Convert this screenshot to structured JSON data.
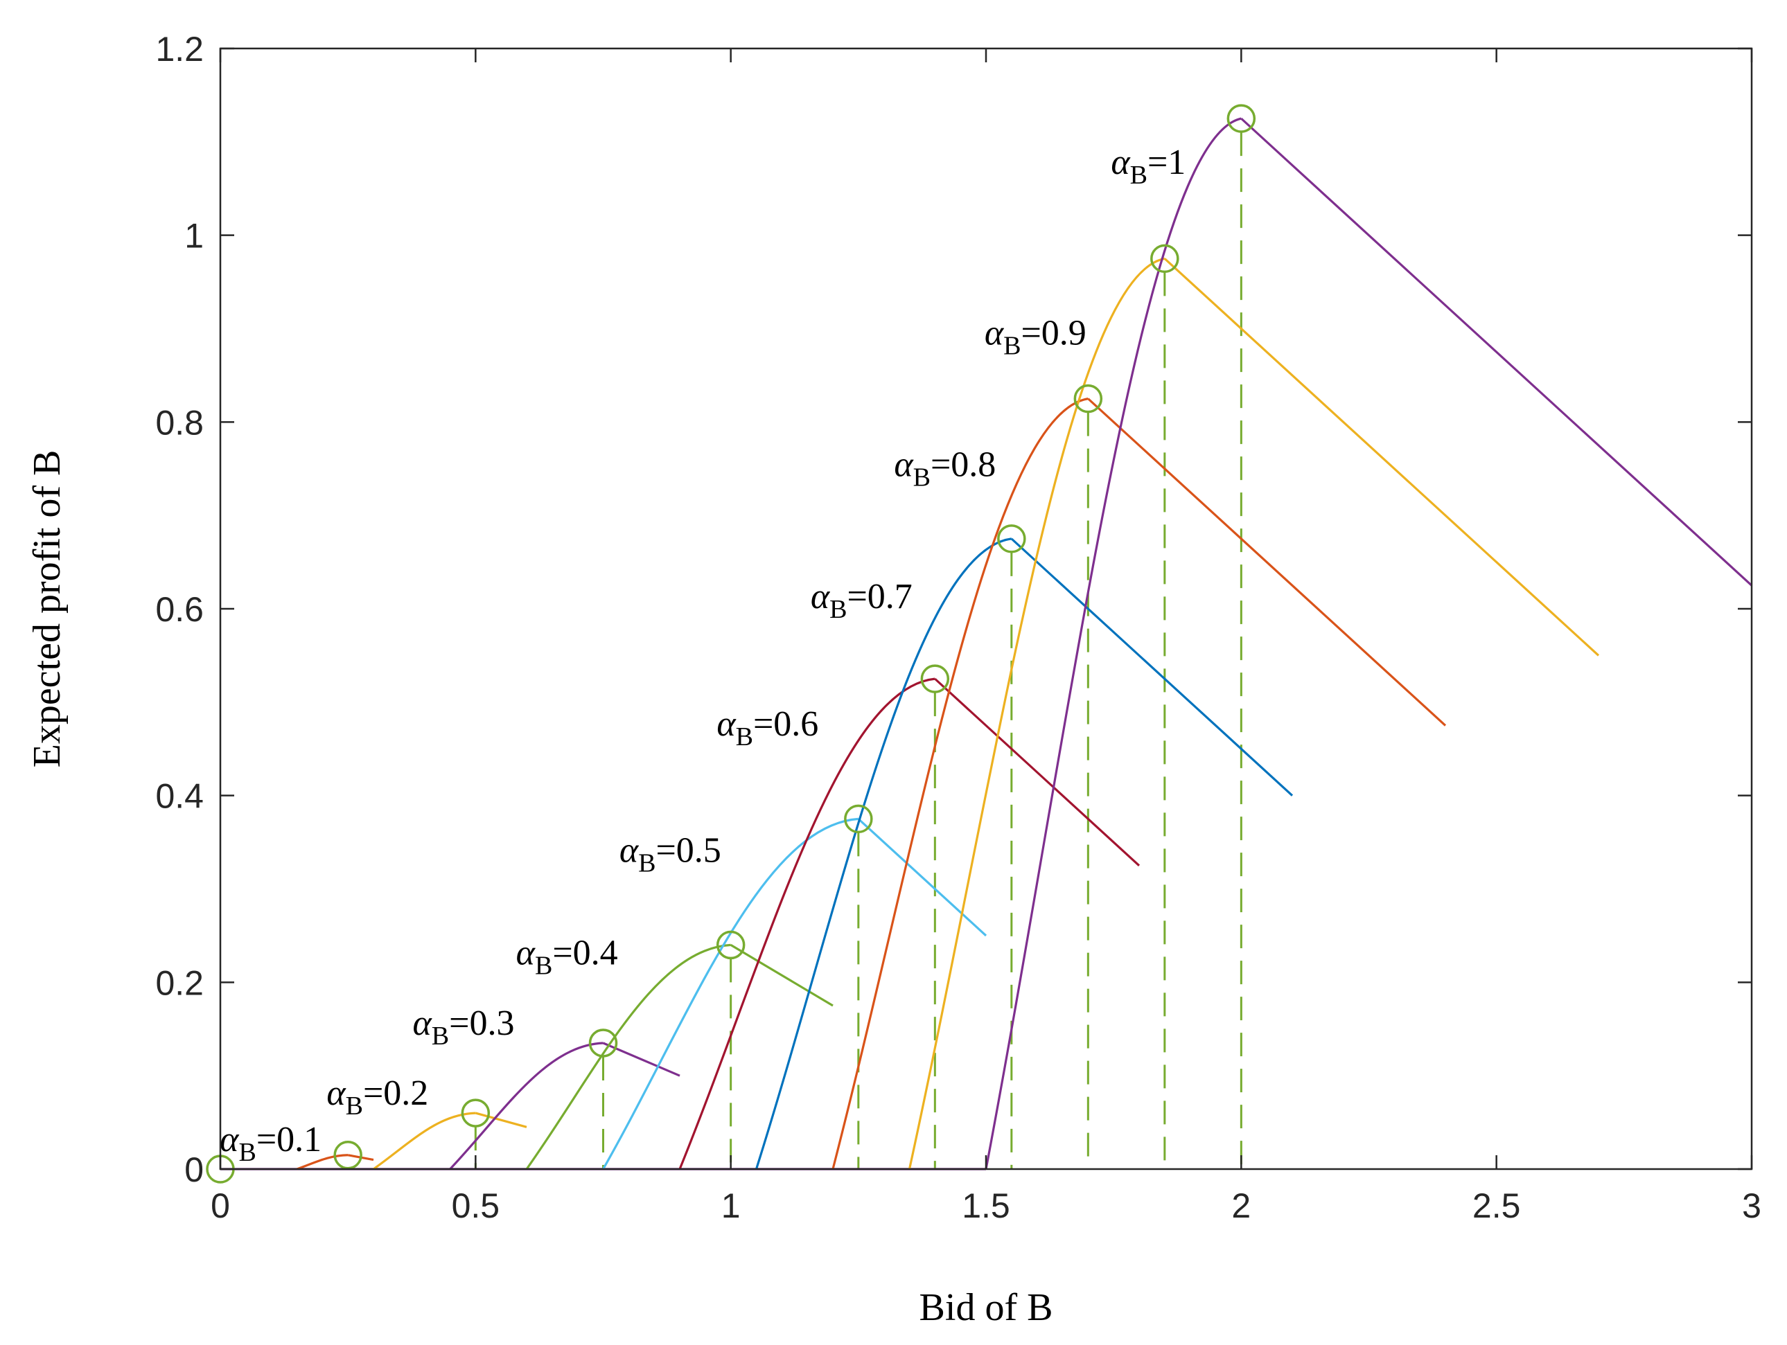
{
  "chart_data": {
    "type": "line",
    "title": "",
    "xlabel": "Bid of B",
    "ylabel": "Expected profit of B",
    "xlim": [
      0,
      3
    ],
    "ylim": [
      0,
      1.2
    ],
    "xticks": [
      0,
      0.5,
      1,
      1.5,
      2,
      2.5,
      3
    ],
    "xtick_labels": [
      "0",
      "0.5",
      "1",
      "1.5",
      "2",
      "2.5",
      "3"
    ],
    "yticks": [
      0,
      0.2,
      0.4,
      0.6,
      0.8,
      1,
      1.2
    ],
    "ytick_labels": [
      "0",
      "0.2",
      "0.4",
      "0.6",
      "0.8",
      "1",
      "1.2"
    ],
    "grid": false,
    "legend": "none",
    "marker_color": "#77AC30",
    "series": [
      {
        "name": "αB=0.1",
        "alpha": 0.1,
        "color": "#D95319",
        "label_symbol": "α",
        "label_sub": "B",
        "label_value": "=0.1",
        "rise": [
          [
            0.15,
            0
          ],
          [
            0.25,
            0.015
          ]
        ],
        "fall": [
          [
            0.25,
            0.015
          ],
          [
            0.3,
            0.01
          ]
        ],
        "optimum": [
          0.25,
          0.015
        ]
      },
      {
        "name": "αB=0.2",
        "alpha": 0.2,
        "color": "#EDB120",
        "label_symbol": "α",
        "label_sub": "B",
        "label_value": "=0.2",
        "rise": [
          [
            0.3,
            0
          ],
          [
            0.5,
            0.06
          ]
        ],
        "fall": [
          [
            0.5,
            0.06
          ],
          [
            0.6,
            0.045
          ]
        ],
        "optimum": [
          0.5,
          0.06
        ]
      },
      {
        "name": "αB=0.3",
        "alpha": 0.3,
        "color": "#7E2F8E",
        "label_symbol": "α",
        "label_sub": "B",
        "label_value": "=0.3",
        "rise": [
          [
            0.45,
            0
          ],
          [
            0.75,
            0.135
          ]
        ],
        "fall": [
          [
            0.75,
            0.135
          ],
          [
            0.9,
            0.1
          ]
        ],
        "optimum": [
          0.75,
          0.135
        ]
      },
      {
        "name": "αB=0.4",
        "alpha": 0.4,
        "color": "#77AC30",
        "label_symbol": "α",
        "label_sub": "B",
        "label_value": "=0.4",
        "rise": [
          [
            0.6,
            0
          ],
          [
            1.0,
            0.24
          ]
        ],
        "fall": [
          [
            1.0,
            0.24
          ],
          [
            1.2,
            0.175
          ]
        ],
        "optimum": [
          1.0,
          0.24
        ]
      },
      {
        "name": "αB=0.5",
        "alpha": 0.5,
        "color": "#4DBEEE",
        "label_symbol": "α",
        "label_sub": "B",
        "label_value": "=0.5",
        "rise": [
          [
            0.75,
            0
          ],
          [
            1.25,
            0.375
          ]
        ],
        "fall": [
          [
            1.25,
            0.375
          ],
          [
            1.5,
            0.25
          ]
        ],
        "optimum": [
          1.25,
          0.375
        ]
      },
      {
        "name": "αB=0.6",
        "alpha": 0.6,
        "color": "#A2142F",
        "label_symbol": "α",
        "label_sub": "B",
        "label_value": "=0.6",
        "rise": [
          [
            0.9,
            0
          ],
          [
            1.4,
            0.525
          ]
        ],
        "fall": [
          [
            1.4,
            0.525
          ],
          [
            1.8,
            0.325
          ]
        ],
        "optimum": [
          1.4,
          0.525
        ]
      },
      {
        "name": "αB=0.7",
        "alpha": 0.7,
        "color": "#0072BD",
        "label_symbol": "α",
        "label_sub": "B",
        "label_value": "=0.7",
        "rise": [
          [
            1.05,
            0
          ],
          [
            1.55,
            0.675
          ]
        ],
        "fall": [
          [
            1.55,
            0.675
          ],
          [
            2.1,
            0.4
          ]
        ],
        "optimum": [
          1.55,
          0.675
        ]
      },
      {
        "name": "αB=0.8",
        "alpha": 0.8,
        "color": "#D95319",
        "label_symbol": "α",
        "label_sub": "B",
        "label_value": "=0.8",
        "rise": [
          [
            1.2,
            0
          ],
          [
            1.7,
            0.825
          ]
        ],
        "fall": [
          [
            1.7,
            0.825
          ],
          [
            2.4,
            0.475
          ]
        ],
        "optimum": [
          1.7,
          0.825
        ]
      },
      {
        "name": "αB=0.9",
        "alpha": 0.9,
        "color": "#EDB120",
        "label_symbol": "α",
        "label_sub": "B",
        "label_value": "=0.9",
        "rise": [
          [
            1.35,
            0
          ],
          [
            1.85,
            0.975
          ]
        ],
        "fall": [
          [
            1.85,
            0.975
          ],
          [
            2.7,
            0.55
          ]
        ],
        "optimum": [
          1.85,
          0.975
        ]
      },
      {
        "name": "αB=1",
        "alpha": 1,
        "color": "#7E2F8E",
        "label_symbol": "α",
        "label_sub": "B",
        "label_value": "=1",
        "rise": [
          [
            1.5,
            0
          ],
          [
            2.0,
            1.125
          ]
        ],
        "fall": [
          [
            2.0,
            1.125
          ],
          [
            3.0,
            0.625
          ]
        ],
        "optimum": [
          2.0,
          1.125
        ]
      }
    ],
    "baseline": {
      "color": "#7E2F8E",
      "x": [
        0,
        1.5
      ],
      "y": 0
    },
    "origin_marker": [
      0,
      0
    ]
  }
}
